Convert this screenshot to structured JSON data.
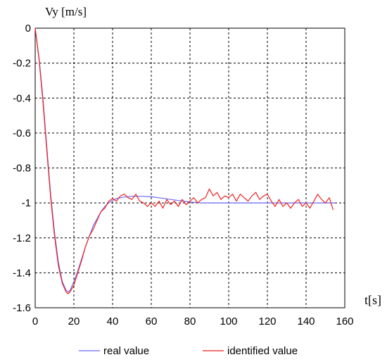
{
  "chart_data": {
    "type": "line",
    "ylabel": "Vy [m/s]",
    "xlabel": "t[s]",
    "xlim": [
      0,
      160
    ],
    "ylim": [
      -1.6,
      0
    ],
    "x_ticks": [
      0,
      20,
      40,
      60,
      80,
      100,
      120,
      140,
      160
    ],
    "y_ticks": [
      0,
      -0.2,
      -0.4,
      -0.6,
      -0.8,
      -1,
      -1.2,
      -1.4,
      -1.6
    ],
    "grid": true,
    "legend_position": "bottom",
    "series": [
      {
        "name": "real value",
        "color": "#6b6bf0",
        "x": [
          0,
          2,
          4,
          6,
          8,
          10,
          12,
          14,
          16,
          17,
          18,
          20,
          22,
          24,
          26,
          28,
          30,
          32,
          34,
          36,
          38,
          40,
          42,
          45,
          50,
          55,
          60,
          65,
          70,
          75,
          80,
          85,
          90,
          100,
          110,
          120,
          130,
          140,
          150,
          155
        ],
        "y": [
          0,
          -0.17,
          -0.4,
          -0.68,
          -0.95,
          -1.17,
          -1.34,
          -1.45,
          -1.5,
          -1.51,
          -1.5,
          -1.45,
          -1.39,
          -1.32,
          -1.25,
          -1.19,
          -1.13,
          -1.09,
          -1.05,
          -1.02,
          -1.0,
          -0.985,
          -0.975,
          -0.968,
          -0.962,
          -0.962,
          -0.965,
          -0.972,
          -0.98,
          -0.988,
          -0.995,
          -0.999,
          -1.0,
          -1.0,
          -1.0,
          -1.0,
          -1.0,
          -1.0,
          -1.0,
          -1.0
        ]
      },
      {
        "name": "identified value",
        "color": "#ee2222",
        "x": [
          0,
          2,
          4,
          6,
          8,
          10,
          12,
          14,
          16,
          17,
          18,
          20,
          22,
          24,
          26,
          28,
          30,
          32,
          34,
          36,
          38,
          40,
          42,
          44,
          46,
          48,
          50,
          52,
          54,
          56,
          58,
          60,
          62,
          64,
          66,
          68,
          70,
          72,
          74,
          76,
          78,
          80,
          82,
          84,
          86,
          88,
          90,
          92,
          94,
          96,
          98,
          100,
          102,
          104,
          106,
          108,
          110,
          112,
          114,
          116,
          118,
          120,
          122,
          124,
          126,
          128,
          130,
          132,
          134,
          136,
          138,
          140,
          142,
          144,
          146,
          148,
          150,
          152,
          154
        ],
        "y": [
          0,
          -0.18,
          -0.42,
          -0.7,
          -0.97,
          -1.19,
          -1.36,
          -1.46,
          -1.51,
          -1.52,
          -1.51,
          -1.47,
          -1.4,
          -1.33,
          -1.25,
          -1.19,
          -1.15,
          -1.1,
          -1.05,
          -1.03,
          -0.99,
          -0.975,
          -0.99,
          -0.96,
          -0.95,
          -0.97,
          -0.98,
          -0.95,
          -0.99,
          -1.0,
          -1.02,
          -1.0,
          -1.02,
          -0.99,
          -1.03,
          -0.98,
          -1.01,
          -0.99,
          -1.02,
          -0.98,
          -1.01,
          -0.99,
          -0.97,
          -1.0,
          -0.98,
          -0.97,
          -0.92,
          -0.96,
          -0.94,
          -0.98,
          -0.96,
          -0.97,
          -0.95,
          -0.99,
          -0.95,
          -0.97,
          -0.99,
          -0.96,
          -0.94,
          -0.98,
          -0.96,
          -0.95,
          -0.99,
          -1.02,
          -0.98,
          -1.02,
          -1.0,
          -1.03,
          -1.0,
          -0.98,
          -1.02,
          -1.0,
          -1.03,
          -0.99,
          -0.95,
          -0.98,
          -1.0,
          -0.97,
          -1.04
        ]
      }
    ]
  }
}
